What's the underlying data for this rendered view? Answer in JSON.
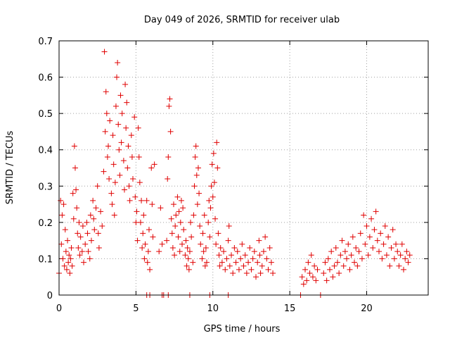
{
  "chart_data": {
    "type": "scatter",
    "title": "Day 049 of 2026, SRMTID for receiver ulab",
    "xlabel": "GPS time / hours",
    "ylabel": "SRMTID / TECUs",
    "xlim": [
      0,
      24
    ],
    "ylim": [
      0,
      0.7
    ],
    "xticks": [
      0,
      5,
      10,
      15,
      20
    ],
    "xtick_labels": [
      "0",
      "5",
      "10",
      "15",
      "20"
    ],
    "yticks": [
      0,
      0.1,
      0.2,
      0.3,
      0.4,
      0.5,
      0.6,
      0.7
    ],
    "ytick_labels": [
      "0",
      "0.1",
      "0.2",
      "0.3",
      "0.4",
      "0.5",
      "0.6",
      "0.7"
    ],
    "grid": true,
    "marker": "plus",
    "series": [
      {
        "name": "SRMTID",
        "color": "#e00000",
        "points": [
          [
            0.0,
            0.06
          ],
          [
            0.1,
            0.26
          ],
          [
            0.15,
            0.14
          ],
          [
            0.2,
            0.22
          ],
          [
            0.25,
            0.1
          ],
          [
            0.3,
            0.25
          ],
          [
            0.35,
            0.08
          ],
          [
            0.4,
            0.18
          ],
          [
            0.45,
            0.12
          ],
          [
            0.5,
            0.07
          ],
          [
            0.55,
            0.15
          ],
          [
            0.6,
            0.09
          ],
          [
            0.65,
            0.11
          ],
          [
            0.7,
            0.06
          ],
          [
            0.75,
            0.1
          ],
          [
            0.8,
            0.13
          ],
          [
            0.85,
            0.08
          ],
          [
            0.9,
            0.28
          ],
          [
            0.95,
            0.21
          ],
          [
            1.0,
            0.41
          ],
          [
            1.05,
            0.35
          ],
          [
            1.1,
            0.29
          ],
          [
            1.15,
            0.24
          ],
          [
            1.2,
            0.17
          ],
          [
            1.25,
            0.13
          ],
          [
            1.3,
            0.2
          ],
          [
            1.35,
            0.11
          ],
          [
            1.4,
            0.16
          ],
          [
            1.5,
            0.12
          ],
          [
            1.55,
            0.19
          ],
          [
            1.6,
            0.09
          ],
          [
            1.7,
            0.14
          ],
          [
            1.8,
            0.2
          ],
          [
            1.85,
            0.17
          ],
          [
            1.9,
            0.12
          ],
          [
            2.0,
            0.1
          ],
          [
            2.05,
            0.22
          ],
          [
            2.1,
            0.15
          ],
          [
            2.2,
            0.26
          ],
          [
            2.25,
            0.21
          ],
          [
            2.3,
            0.18
          ],
          [
            2.4,
            0.24
          ],
          [
            2.5,
            0.3
          ],
          [
            2.55,
            0.17
          ],
          [
            2.6,
            0.13
          ],
          [
            2.7,
            0.23
          ],
          [
            2.8,
            0.19
          ],
          [
            2.9,
            0.34
          ],
          [
            2.95,
            0.67
          ],
          [
            3.0,
            0.45
          ],
          [
            3.05,
            0.56
          ],
          [
            3.1,
            0.5
          ],
          [
            3.15,
            0.38
          ],
          [
            3.2,
            0.41
          ],
          [
            3.25,
            0.32
          ],
          [
            3.3,
            0.48
          ],
          [
            3.4,
            0.28
          ],
          [
            3.45,
            0.25
          ],
          [
            3.5,
            0.44
          ],
          [
            3.55,
            0.36
          ],
          [
            3.6,
            0.22
          ],
          [
            3.65,
            0.31
          ],
          [
            3.7,
            0.52
          ],
          [
            3.75,
            0.6
          ],
          [
            3.8,
            0.64
          ],
          [
            3.85,
            0.47
          ],
          [
            3.9,
            0.4
          ],
          [
            3.95,
            0.33
          ],
          [
            4.0,
            0.55
          ],
          [
            4.05,
            0.42
          ],
          [
            4.1,
            0.5
          ],
          [
            4.2,
            0.37
          ],
          [
            4.25,
            0.29
          ],
          [
            4.3,
            0.58
          ],
          [
            4.35,
            0.46
          ],
          [
            4.4,
            0.53
          ],
          [
            4.45,
            0.35
          ],
          [
            4.5,
            0.41
          ],
          [
            4.55,
            0.3
          ],
          [
            4.6,
            0.26
          ],
          [
            4.7,
            0.44
          ],
          [
            4.75,
            0.38
          ],
          [
            4.8,
            0.32
          ],
          [
            4.9,
            0.49
          ],
          [
            4.95,
            0.27
          ],
          [
            5.0,
            0.2
          ],
          [
            5.05,
            0.23
          ],
          [
            5.1,
            0.15
          ],
          [
            5.15,
            0.46
          ],
          [
            5.2,
            0.38
          ],
          [
            5.25,
            0.31
          ],
          [
            5.3,
            0.2
          ],
          [
            5.35,
            0.26
          ],
          [
            5.4,
            0.13
          ],
          [
            5.45,
            0.17
          ],
          [
            5.5,
            0.22
          ],
          [
            5.55,
            0.1
          ],
          [
            5.6,
            0.14
          ],
          [
            5.7,
            0.26
          ],
          [
            5.75,
            0.09
          ],
          [
            5.8,
            0.12
          ],
          [
            5.85,
            0.18
          ],
          [
            5.9,
            0.07
          ],
          [
            6.0,
            0.35
          ],
          [
            6.05,
            0.25
          ],
          [
            6.1,
            0.16
          ],
          [
            6.2,
            0.36
          ],
          [
            6.5,
            0.12
          ],
          [
            6.6,
            0.24
          ],
          [
            6.7,
            0.14
          ],
          [
            7.0,
            0.15
          ],
          [
            7.05,
            0.32
          ],
          [
            7.1,
            0.38
          ],
          [
            7.15,
            0.52
          ],
          [
            7.2,
            0.54
          ],
          [
            7.25,
            0.45
          ],
          [
            7.3,
            0.21
          ],
          [
            7.35,
            0.17
          ],
          [
            7.4,
            0.13
          ],
          [
            7.45,
            0.25
          ],
          [
            7.5,
            0.11
          ],
          [
            7.55,
            0.19
          ],
          [
            7.6,
            0.22
          ],
          [
            7.7,
            0.27
          ],
          [
            7.75,
            0.16
          ],
          [
            7.8,
            0.23
          ],
          [
            7.85,
            0.12
          ],
          [
            7.9,
            0.2
          ],
          [
            7.95,
            0.26
          ],
          [
            8.0,
            0.14
          ],
          [
            8.05,
            0.24
          ],
          [
            8.1,
            0.18
          ],
          [
            8.2,
            0.11
          ],
          [
            8.25,
            0.15
          ],
          [
            8.3,
            0.08
          ],
          [
            8.35,
            0.13
          ],
          [
            8.4,
            0.1
          ],
          [
            8.45,
            0.07
          ],
          [
            8.5,
            0.12
          ],
          [
            8.55,
            0.2
          ],
          [
            8.6,
            0.16
          ],
          [
            8.7,
            0.09
          ],
          [
            8.75,
            0.22
          ],
          [
            8.8,
            0.3
          ],
          [
            8.85,
            0.38
          ],
          [
            8.9,
            0.41
          ],
          [
            8.95,
            0.33
          ],
          [
            9.0,
            0.25
          ],
          [
            9.05,
            0.35
          ],
          [
            9.1,
            0.28
          ],
          [
            9.15,
            0.19
          ],
          [
            9.2,
            0.14
          ],
          [
            9.3,
            0.1
          ],
          [
            9.35,
            0.17
          ],
          [
            9.4,
            0.12
          ],
          [
            9.45,
            0.22
          ],
          [
            9.5,
            0.08
          ],
          [
            9.55,
            0.13
          ],
          [
            9.6,
            0.09
          ],
          [
            9.7,
            0.2
          ],
          [
            9.75,
            0.26
          ],
          [
            9.8,
            0.16
          ],
          [
            9.85,
            0.24
          ],
          [
            9.9,
            0.3
          ],
          [
            9.95,
            0.36
          ],
          [
            10.0,
            0.27
          ],
          [
            10.05,
            0.39
          ],
          [
            10.1,
            0.31
          ],
          [
            10.15,
            0.21
          ],
          [
            10.2,
            0.14
          ],
          [
            10.25,
            0.42
          ],
          [
            10.3,
            0.35
          ],
          [
            10.35,
            0.17
          ],
          [
            10.4,
            0.11
          ],
          [
            10.45,
            0.08
          ],
          [
            10.5,
            0.13
          ],
          [
            10.6,
            0.09
          ],
          [
            10.7,
            0.12
          ],
          [
            10.8,
            0.07
          ],
          [
            10.9,
            0.1
          ],
          [
            11.0,
            0.15
          ],
          [
            11.05,
            0.19
          ],
          [
            11.1,
            0.08
          ],
          [
            11.2,
            0.11
          ],
          [
            11.3,
            0.06
          ],
          [
            11.4,
            0.13
          ],
          [
            11.5,
            0.09
          ],
          [
            11.6,
            0.12
          ],
          [
            11.7,
            0.07
          ],
          [
            11.8,
            0.1
          ],
          [
            11.9,
            0.14
          ],
          [
            12.0,
            0.08
          ],
          [
            12.1,
            0.11
          ],
          [
            12.2,
            0.06
          ],
          [
            12.3,
            0.09
          ],
          [
            12.4,
            0.13
          ],
          [
            12.5,
            0.07
          ],
          [
            12.6,
            0.1
          ],
          [
            12.7,
            0.12
          ],
          [
            12.8,
            0.05
          ],
          [
            12.9,
            0.09
          ],
          [
            13.0,
            0.15
          ],
          [
            13.05,
            0.11
          ],
          [
            13.1,
            0.06
          ],
          [
            13.2,
            0.08
          ],
          [
            13.3,
            0.12
          ],
          [
            13.4,
            0.16
          ],
          [
            13.5,
            0.1
          ],
          [
            13.6,
            0.07
          ],
          [
            13.7,
            0.13
          ],
          [
            13.8,
            0.09
          ],
          [
            13.9,
            0.06
          ],
          [
            15.8,
            0.05
          ],
          [
            15.9,
            0.03
          ],
          [
            16.0,
            0.07
          ],
          [
            16.1,
            0.04
          ],
          [
            16.2,
            0.09
          ],
          [
            16.3,
            0.06
          ],
          [
            16.4,
            0.11
          ],
          [
            16.5,
            0.05
          ],
          [
            16.6,
            0.08
          ],
          [
            16.7,
            0.04
          ],
          [
            16.8,
            0.07
          ],
          [
            17.2,
            0.06
          ],
          [
            17.3,
            0.09
          ],
          [
            17.4,
            0.04
          ],
          [
            17.5,
            0.1
          ],
          [
            17.6,
            0.07
          ],
          [
            17.7,
            0.12
          ],
          [
            17.8,
            0.05
          ],
          [
            17.9,
            0.08
          ],
          [
            18.0,
            0.13
          ],
          [
            18.1,
            0.09
          ],
          [
            18.2,
            0.06
          ],
          [
            18.3,
            0.11
          ],
          [
            18.4,
            0.15
          ],
          [
            18.5,
            0.08
          ],
          [
            18.6,
            0.12
          ],
          [
            18.7,
            0.1
          ],
          [
            18.8,
            0.14
          ],
          [
            18.9,
            0.07
          ],
          [
            19.0,
            0.11
          ],
          [
            19.1,
            0.16
          ],
          [
            19.2,
            0.09
          ],
          [
            19.3,
            0.13
          ],
          [
            19.4,
            0.08
          ],
          [
            19.5,
            0.12
          ],
          [
            19.6,
            0.17
          ],
          [
            19.7,
            0.1
          ],
          [
            19.8,
            0.22
          ],
          [
            19.9,
            0.14
          ],
          [
            20.0,
            0.19
          ],
          [
            20.1,
            0.11
          ],
          [
            20.2,
            0.16
          ],
          [
            20.3,
            0.21
          ],
          [
            20.4,
            0.13
          ],
          [
            20.5,
            0.18
          ],
          [
            20.6,
            0.23
          ],
          [
            20.7,
            0.15
          ],
          [
            20.8,
            0.12
          ],
          [
            20.9,
            0.17
          ],
          [
            21.0,
            0.1
          ],
          [
            21.1,
            0.14
          ],
          [
            21.2,
            0.19
          ],
          [
            21.3,
            0.11
          ],
          [
            21.4,
            0.16
          ],
          [
            21.5,
            0.08
          ],
          [
            21.6,
            0.13
          ],
          [
            21.7,
            0.18
          ],
          [
            21.8,
            0.1
          ],
          [
            21.9,
            0.14
          ],
          [
            22.0,
            0.12
          ],
          [
            22.1,
            0.08
          ],
          [
            22.2,
            0.11
          ],
          [
            22.3,
            0.14
          ],
          [
            22.4,
            0.07
          ],
          [
            22.5,
            0.1
          ],
          [
            22.6,
            0.12
          ],
          [
            22.7,
            0.09
          ],
          [
            22.8,
            0.11
          ],
          [
            5.7,
            0.0
          ],
          [
            5.9,
            0.0
          ],
          [
            6.7,
            0.0
          ],
          [
            6.8,
            0.0
          ],
          [
            7.1,
            0.0
          ],
          [
            8.5,
            0.0
          ],
          [
            9.8,
            0.0
          ],
          [
            11.0,
            0.0
          ],
          [
            15.7,
            0.0
          ],
          [
            17.0,
            0.0
          ]
        ]
      }
    ]
  }
}
